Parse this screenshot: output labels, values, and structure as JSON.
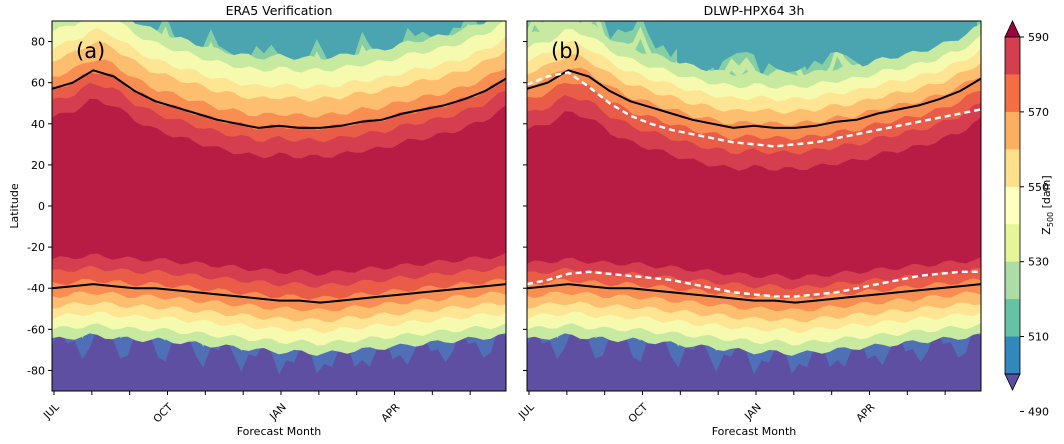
{
  "chart_data": [
    {
      "type": "heatmap",
      "panel_label": "(a)",
      "title": "ERA5 Verification",
      "xlabel": "Forecast Month",
      "ylabel": "Latitude",
      "x_tick_labels": [
        "JUL",
        "OCT",
        "JAN",
        "APR"
      ],
      "y_ticks": [
        -80,
        -60,
        -40,
        -20,
        0,
        20,
        40,
        60,
        80
      ],
      "ylim": [
        -90,
        90
      ],
      "field": "Z500 [dam] filled contours, warm (>=590 dam) band between roughly 45N and 25S, cold (<500 dam) at high latitudes",
      "black_contour_north_lat": [
        57,
        60,
        66,
        63,
        56,
        51,
        48,
        45,
        42,
        40,
        38,
        39,
        38,
        38,
        39,
        41,
        42,
        45,
        47,
        49,
        52,
        56,
        62
      ],
      "black_contour_south_lat": [
        -40,
        -39,
        -38,
        -39,
        -40,
        -40,
        -41,
        -42,
        -43,
        -44,
        -45,
        -46,
        -46,
        -47,
        -46,
        -45,
        -44,
        -43,
        -42,
        -41,
        -40,
        -39,
        -38
      ]
    },
    {
      "type": "heatmap",
      "panel_label": "(b)",
      "title": "DLWP-HPX64 3h",
      "xlabel": "Forecast Month",
      "x_tick_labels": [
        "JUL",
        "OCT",
        "JAN",
        "APR"
      ],
      "y_ticks": [
        -80,
        -60,
        -40,
        -20,
        0,
        20,
        40,
        60,
        80
      ],
      "ylim": [
        -90,
        90
      ],
      "black_contour_north_lat": [
        57,
        60,
        66,
        63,
        56,
        51,
        48,
        45,
        42,
        40,
        38,
        39,
        38,
        38,
        39,
        41,
        42,
        45,
        47,
        49,
        52,
        56,
        62
      ],
      "black_contour_south_lat": [
        -40,
        -39,
        -38,
        -39,
        -40,
        -40,
        -41,
        -42,
        -43,
        -44,
        -45,
        -46,
        -46,
        -47,
        -46,
        -45,
        -44,
        -43,
        -42,
        -41,
        -40,
        -39,
        -38
      ],
      "white_dashed_contour_north_lat": [
        59,
        63,
        65,
        58,
        50,
        44,
        40,
        37,
        35,
        33,
        31,
        30,
        29,
        30,
        31,
        33,
        35,
        37,
        39,
        41,
        43,
        45,
        47
      ],
      "white_dashed_contour_south_lat": [
        -38,
        -36,
        -33,
        -32,
        -33,
        -34,
        -35,
        -36,
        -38,
        -40,
        -42,
        -43,
        -44,
        -44,
        -43,
        -42,
        -40,
        -38,
        -36,
        -34,
        -33,
        -32,
        -32
      ]
    }
  ],
  "colorbar": {
    "label_main": "Z",
    "label_sub": "500",
    "label_unit": " [dam]",
    "ticks": [
      "590",
      "570",
      "550",
      "530",
      "510",
      "490"
    ],
    "levels_top_to_bottom": [
      "#9e0142",
      "#d53e4f",
      "#f46d43",
      "#fdae61",
      "#fee08b",
      "#ffffbf",
      "#e6f598",
      "#abdda4",
      "#66c2a5",
      "#3288bd",
      "#5e4fa2"
    ]
  },
  "colors": {
    "c590": "#b81c45",
    "c580": "#d53e4f",
    "c570": "#e95c47",
    "c560": "#f98e52",
    "c550": "#fdbf6f",
    "c540": "#fee593",
    "c530": "#f5faae",
    "c520": "#c7e9a0",
    "c510": "#86cfa5",
    "c500": "#4aa5b0",
    "c490": "#4f6fb7",
    "c480": "#5e4fa2"
  }
}
